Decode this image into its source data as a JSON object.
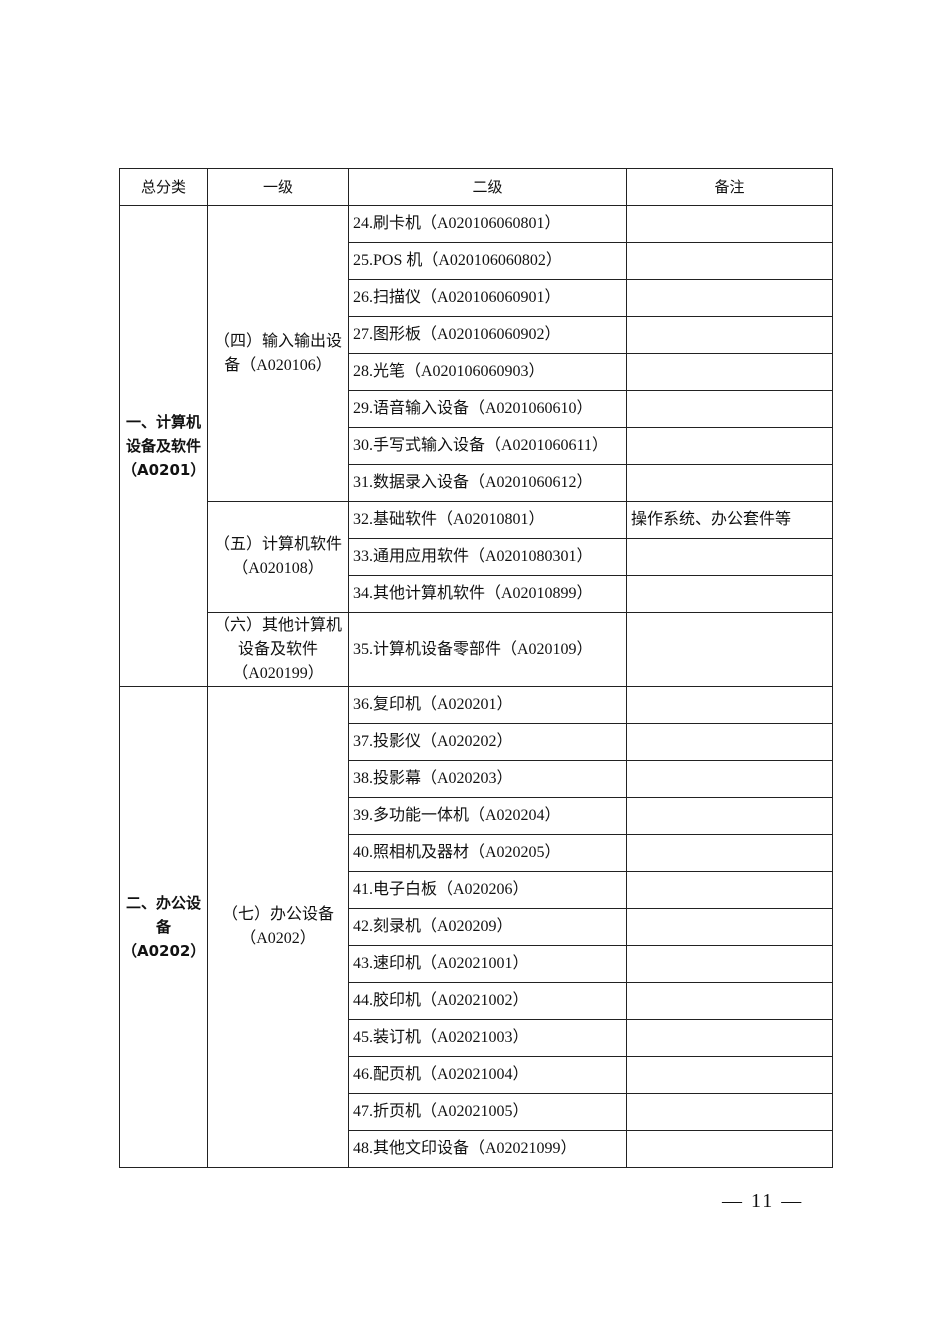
{
  "headers": [
    "总分类",
    "一级",
    "二级",
    "备注"
  ],
  "groups": [
    {
      "category": "一、计算机设备及软件（A0201）",
      "subgroups": [
        {
          "label": "（四）输入输出设备（A020106）",
          "items": [
            {
              "name": "24.刷卡机（A020106060801）",
              "note": ""
            },
            {
              "name": "25.POS 机（A020106060802）",
              "note": ""
            },
            {
              "name": "26.扫描仪（A020106060901）",
              "note": ""
            },
            {
              "name": "27.图形板（A020106060902）",
              "note": ""
            },
            {
              "name": "28.光笔（A020106060903）",
              "note": ""
            },
            {
              "name": "29.语音输入设备（A0201060610）",
              "note": ""
            },
            {
              "name": "30.手写式输入设备（A0201060611）",
              "note": ""
            },
            {
              "name": "31.数据录入设备（A0201060612）",
              "note": ""
            }
          ]
        },
        {
          "label": "（五）计算机软件（A020108）",
          "items": [
            {
              "name": "32.基础软件（A02010801）",
              "note": "操作系统、办公套件等"
            },
            {
              "name": "33.通用应用软件（A0201080301）",
              "note": ""
            },
            {
              "name": "34.其他计算机软件（A02010899）",
              "note": ""
            }
          ]
        },
        {
          "label": "（六）其他计算机设备及软件（A020199）",
          "tall": true,
          "items": [
            {
              "name": "35.计算机设备零部件（A020109）",
              "note": ""
            }
          ]
        }
      ]
    },
    {
      "category": "二、办公设备（A0202）",
      "subgroups": [
        {
          "label": "（七）办公设备（A0202）",
          "items": [
            {
              "name": "36.复印机（A020201）",
              "note": ""
            },
            {
              "name": "37.投影仪（A020202）",
              "note": ""
            },
            {
              "name": "38.投影幕（A020203）",
              "note": ""
            },
            {
              "name": "39.多功能一体机（A020204）",
              "note": ""
            },
            {
              "name": "40.照相机及器材（A020205）",
              "note": ""
            },
            {
              "name": "41.电子白板（A020206）",
              "note": ""
            },
            {
              "name": "42.刻录机（A020209）",
              "note": ""
            },
            {
              "name": "43.速印机（A02021001）",
              "note": ""
            },
            {
              "name": "44.胶印机（A02021002）",
              "note": ""
            },
            {
              "name": "45.装订机（A02021003）",
              "note": ""
            },
            {
              "name": "46.配页机（A02021004）",
              "note": ""
            },
            {
              "name": "47.折页机（A02021005）",
              "note": ""
            },
            {
              "name": "48.其他文印设备（A02021099）",
              "note": ""
            }
          ]
        }
      ]
    }
  ],
  "page_number": "— 11 —"
}
